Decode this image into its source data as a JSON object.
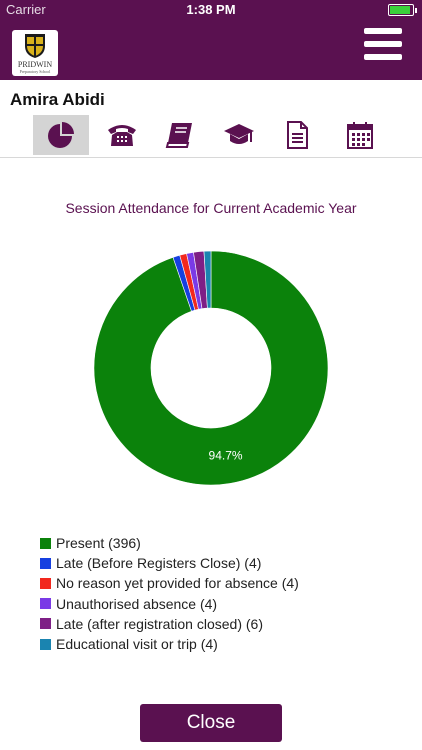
{
  "status_bar": {
    "carrier": "Carrier",
    "time": "1:38 PM"
  },
  "header": {
    "school_name": "PRIDWIN",
    "school_subtitle": "Preparatory School",
    "logo_icon": "school-crest-icon",
    "menu_icon": "hamburger-menu-icon"
  },
  "student": {
    "name": "Amira Abidi"
  },
  "tabs": [
    {
      "id": "attendance",
      "icon": "pie-chart-icon",
      "active": true
    },
    {
      "id": "contacts",
      "icon": "telephone-icon",
      "active": false
    },
    {
      "id": "homework",
      "icon": "book-icon",
      "active": false
    },
    {
      "id": "achievements",
      "icon": "graduation-cap-icon",
      "active": false
    },
    {
      "id": "reports",
      "icon": "document-icon",
      "active": false
    },
    {
      "id": "calendar",
      "icon": "calendar-icon",
      "active": false
    }
  ],
  "chart_data": {
    "type": "pie",
    "title": "Session Attendance for Current Academic Year",
    "series": [
      {
        "name": "Present",
        "value": 396,
        "color": "#0b820b",
        "label": "Present (396)",
        "percent_label": "94.7%"
      },
      {
        "name": "Late (Before Registers Close)",
        "value": 4,
        "color": "#1640e0",
        "label": "Late (Before Registers Close) (4)"
      },
      {
        "name": "No reason yet provided for absence",
        "value": 4,
        "color": "#f2281e",
        "label": "No reason yet provided for absence (4)"
      },
      {
        "name": "Unauthorised absence",
        "value": 4,
        "color": "#7a3ae6",
        "label": "Unauthorised absence (4)"
      },
      {
        "name": "Late (after registration closed)",
        "value": 6,
        "color": "#7e1f86",
        "label": "Late (after registration closed) (6)"
      },
      {
        "name": "Educational visit or trip",
        "value": 4,
        "color": "#1a84b0",
        "label": "Educational visit or trip (4)"
      }
    ],
    "legend_position": "bottom"
  },
  "footer": {
    "close_label": "Close"
  },
  "colors": {
    "brand": "#5a1150",
    "active_tab": "#d4d4d4"
  }
}
